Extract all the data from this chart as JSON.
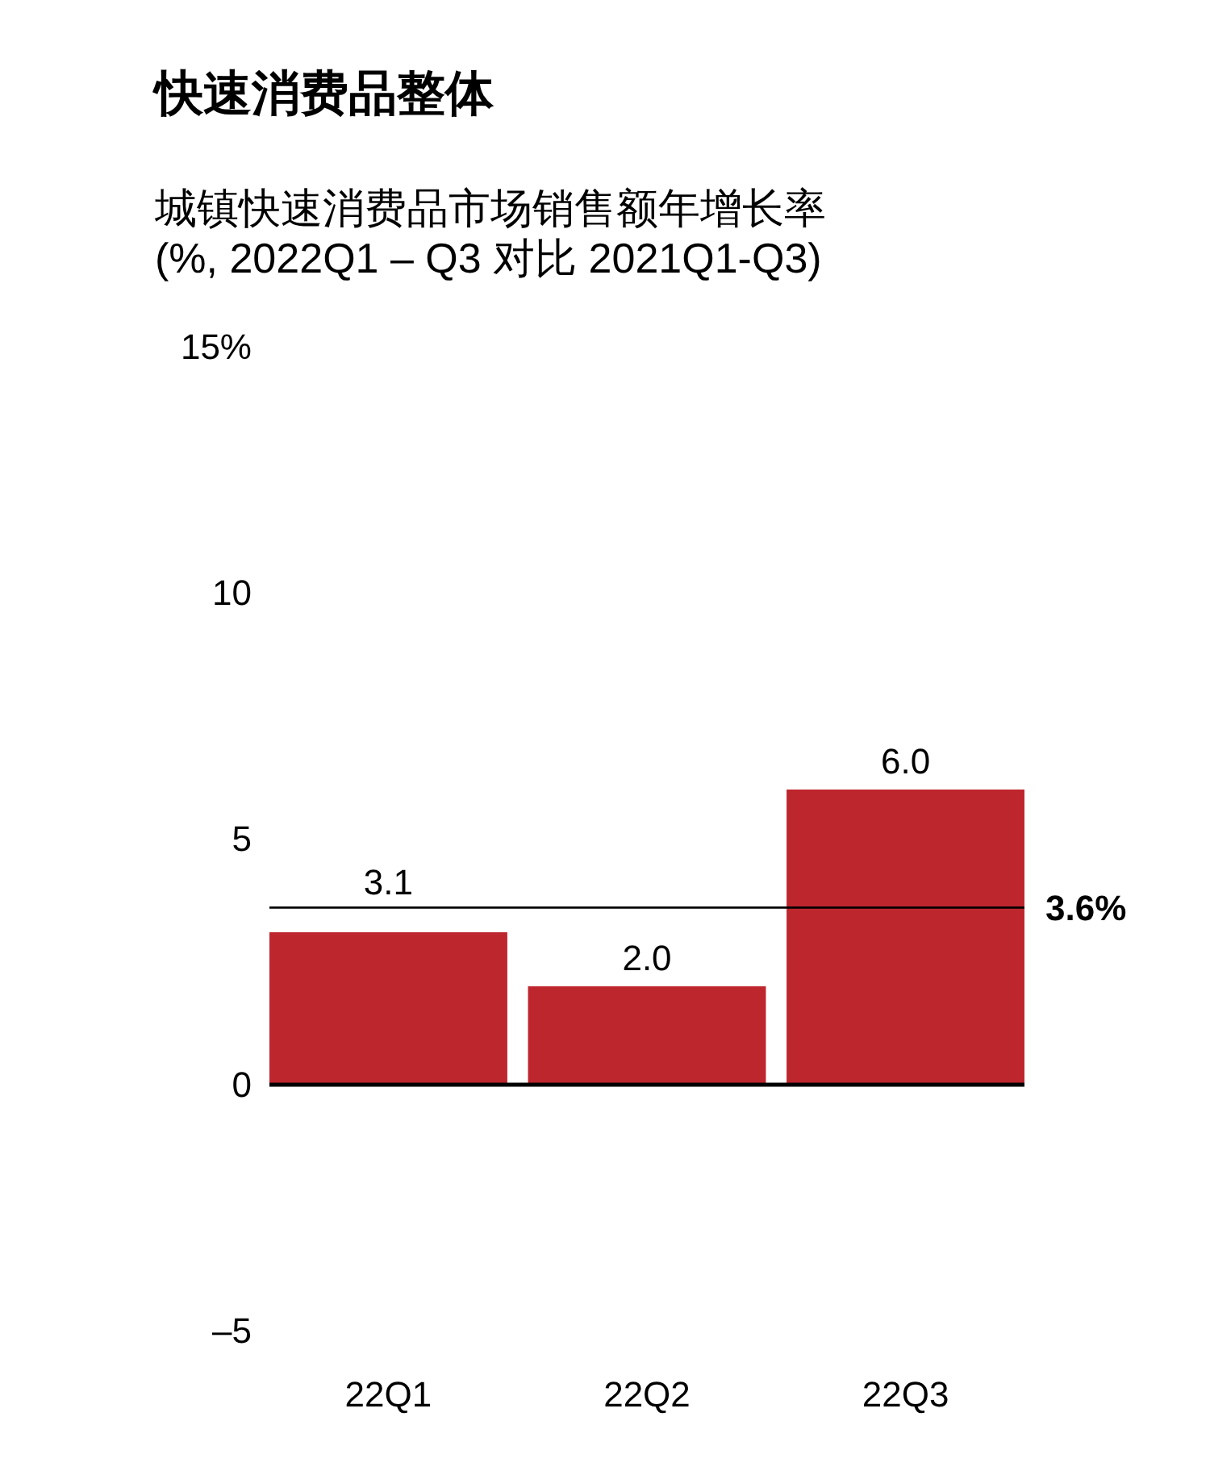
{
  "chart_data": {
    "type": "bar",
    "title": "快速消费品整体",
    "subtitle": "城镇快速消费品市场销售额年增长率\n(%, 2022Q1 – Q3 对比 2021Q1-Q3)",
    "categories": [
      "22Q1",
      "22Q2",
      "22Q3"
    ],
    "values": [
      3.1,
      2.0,
      6.0
    ],
    "color": "#be262e",
    "ylim": [
      -5,
      15
    ],
    "yticks": [
      {
        "value": -5,
        "label": "–5"
      },
      0,
      5,
      10,
      {
        "value": 15,
        "label": "15%"
      }
    ],
    "value_labels": [
      "3.1",
      "2.0",
      "6.0"
    ],
    "ref_lines": [
      {
        "axis": "y",
        "value": 3.6,
        "label": "3.6%"
      }
    ]
  }
}
